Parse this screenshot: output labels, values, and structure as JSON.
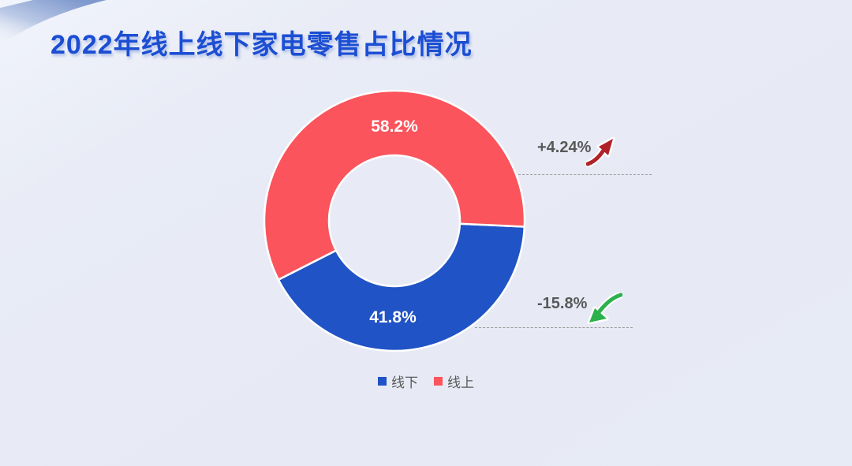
{
  "page": {
    "title": "2022年线上线下家电零售占比情况",
    "title_color": "#1c4ed3",
    "background_color": "#e7eaf5"
  },
  "chart_data": {
    "type": "pie",
    "subtype": "donut",
    "title": "2022年线上线下家电零售占比情况",
    "start_angle_deg": 92.6,
    "inner_radius_ratio": 0.5,
    "legend_position": "bottom",
    "slices": [
      {
        "name": "线下",
        "value": 41.8,
        "label": "41.8%",
        "color": "#2053c5"
      },
      {
        "name": "线上",
        "value": 58.2,
        "label": "58.2%",
        "color": "#fb545c"
      }
    ],
    "annotations": [
      {
        "text": "+4.24%",
        "trend": "up",
        "arrow_color": "#b12228",
        "text_color": "#595959"
      },
      {
        "text": "-15.8%",
        "trend": "down",
        "arrow_color": "#2db14d",
        "text_color": "#595959"
      }
    ]
  }
}
